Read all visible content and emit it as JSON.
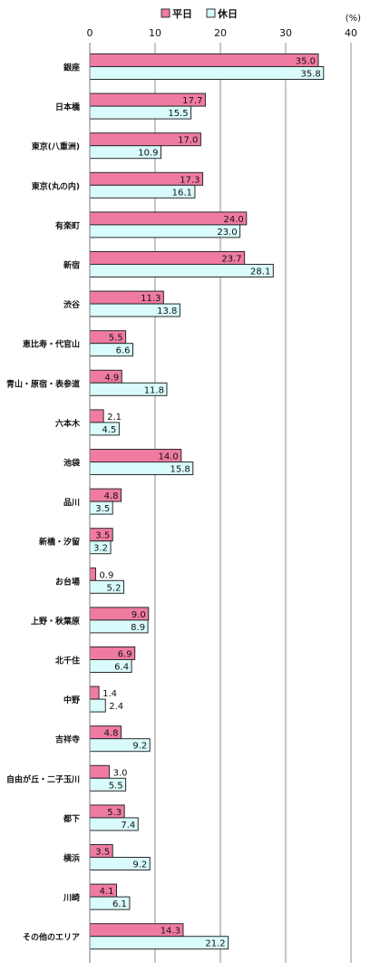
{
  "chart_data": {
    "type": "bar",
    "orientation": "horizontal",
    "unit": "(%)",
    "xlim": [
      0,
      40
    ],
    "xticks": [
      0,
      10,
      20,
      30,
      40
    ],
    "grid": true,
    "legend_position": "top",
    "categories": [
      "銀座",
      "日本橋",
      "東京(八重洲)",
      "東京(丸の内)",
      "有楽町",
      "新宿",
      "渋谷",
      "恵比寿・代官山",
      "青山・原宿・表参道",
      "六本木",
      "池袋",
      "品川",
      "新橋・汐留",
      "お台場",
      "上野・秋葉原",
      "北千住",
      "中野",
      "吉祥寺",
      "自由が丘・二子玉川",
      "都下",
      "横浜",
      "川崎",
      "その他のエリア"
    ],
    "series": [
      {
        "name": "平日",
        "color": "#f07ba0",
        "values": [
          35.0,
          17.7,
          17.0,
          17.3,
          24.0,
          23.7,
          11.3,
          5.5,
          4.9,
          2.1,
          14.0,
          4.8,
          3.5,
          0.9,
          9.0,
          6.9,
          1.4,
          4.8,
          3.0,
          5.3,
          3.5,
          4.1,
          14.3
        ]
      },
      {
        "name": "休日",
        "color": "#d9fbfb",
        "values": [
          35.8,
          15.5,
          10.9,
          16.1,
          23.0,
          28.1,
          13.8,
          6.6,
          11.8,
          4.5,
          15.8,
          3.5,
          3.2,
          5.2,
          8.9,
          6.4,
          2.4,
          9.2,
          5.5,
          7.4,
          9.2,
          6.1,
          21.2
        ]
      }
    ]
  }
}
